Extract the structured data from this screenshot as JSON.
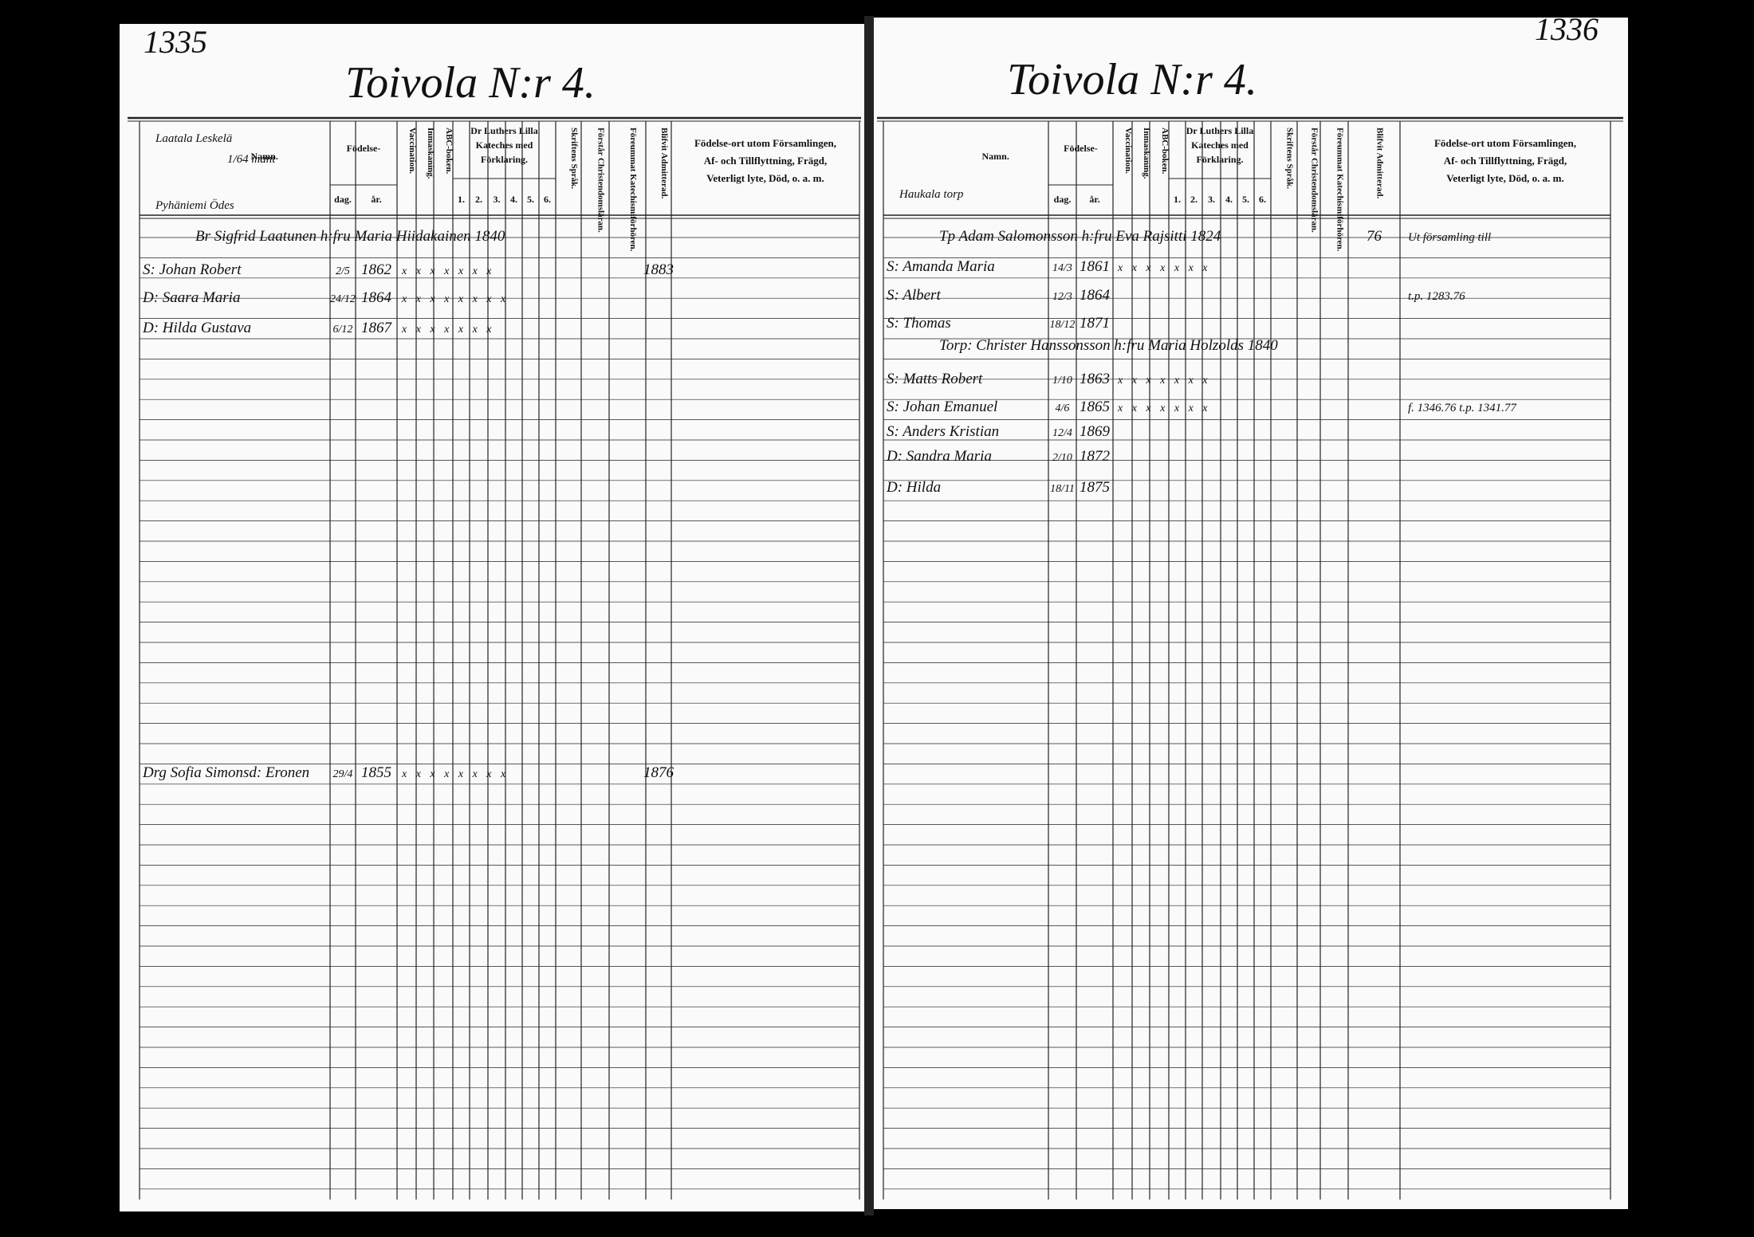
{
  "left_page": {
    "page_number": "1335",
    "title": "Toivola N:r 4.",
    "household_note": [
      "Laatala Leskelä",
      "1/64 mant",
      "Pyhäniemi Ödes"
    ],
    "header": {
      "name": "Namn.",
      "birth": "Födelse-",
      "day": "dag.",
      "year": "år.",
      "vaccination": "Vaccination.",
      "inoculation": "Inmaskaning.",
      "abc": "ABC-boken.",
      "catechism": [
        "Dr Luthers Lilla",
        "Kateches med",
        "Förklaring."
      ],
      "catechism_parts": [
        "1.",
        "2.",
        "3.",
        "4.",
        "5.",
        "6."
      ],
      "reading": "Skriftens Språk.",
      "understanding": "Förstår Christendomsläran.",
      "attended": "Föreummat Katechismiförhören.",
      "admitted": "Blifvit Admitterad.",
      "remarks": [
        "Födelse-ort utom Församlingen,",
        "Af- och Tillflyttning, Frägd,",
        "Veterligt lyte, Död, o. a. m."
      ]
    },
    "entries": [
      {
        "text": "Br Sigfrid Laatunen h:fru Maria Hiidakainen 1840"
      },
      {
        "name": "S: Johan Robert",
        "day": "2/5",
        "year": "1862",
        "marks": "x x x x x x x",
        "admitted": "1883"
      },
      {
        "name": "D: Saara Maria",
        "day": "24/12",
        "year": "1864",
        "marks": "x x x x x x x x"
      },
      {
        "name": "D: Hilda Gustava",
        "day": "6/12",
        "year": "1867",
        "marks": "x x x x x x x"
      },
      {
        "name": "Drg Sofia Simonsd: Eronen",
        "day": "29/4",
        "year": "1855",
        "marks": "x x x x x x x x",
        "admitted": "1876"
      }
    ]
  },
  "right_page": {
    "page_number": "1336",
    "title": "Toivola N:r 4.",
    "household_note": [
      "Haukala torp"
    ],
    "header": {
      "name": "Namn.",
      "birth": "Födelse-",
      "day": "dag.",
      "year": "år.",
      "vaccination": "Vaccination.",
      "inoculation": "Inmaskaning.",
      "abc": "ABC-boken.",
      "catechism": [
        "Dr Luthers Lilla",
        "Kateches med",
        "Förklaring."
      ],
      "catechism_parts": [
        "1.",
        "2.",
        "3.",
        "4.",
        "5.",
        "6."
      ],
      "reading": "Skriftens Språk.",
      "understanding": "Förstår Christendomsläran.",
      "attended": "Föreummat Katechismiförhören.",
      "admitted": "Blifvit Admitterad.",
      "remarks": [
        "Födelse-ort utom Församlingen,",
        "Af- och Tillflyttning, Frägd,",
        "Veterligt lyte, Död, o. a. m."
      ]
    },
    "entries": [
      {
        "text": "Tp Adam Salomonsson h:fru Eva Rajsitti 1824",
        "admitted": "76",
        "remarks": "Ut församling till"
      },
      {
        "name": "S: Amanda Maria",
        "day": "14/3",
        "year": "1861",
        "marks": "x x x x x x x"
      },
      {
        "name": "S: Albert",
        "day": "12/3",
        "year": "1864",
        "remarks": "t.p. 1283.76"
      },
      {
        "name": "S: Thomas",
        "day": "18/12",
        "year": "1871"
      },
      {
        "text": "Torp: Christer Hanssonsson h:fru Maria Holzolds 1840"
      },
      {
        "name": "S: Matts Robert",
        "day": "1/10",
        "year": "1863",
        "marks": "x x x x x x x"
      },
      {
        "name": "S: Johan Emanuel",
        "day": "4/6",
        "year": "1865",
        "marks": "x x x x x x x",
        "remarks": "f. 1346.76 t.p. 1341.77"
      },
      {
        "name": "S: Anders Kristian",
        "day": "12/4",
        "year": "1869"
      },
      {
        "name": "D: Sandra Maria",
        "day": "2/10",
        "year": "1872"
      },
      {
        "name": "D: Hilda",
        "day": "18/11",
        "year": "1875"
      }
    ]
  }
}
